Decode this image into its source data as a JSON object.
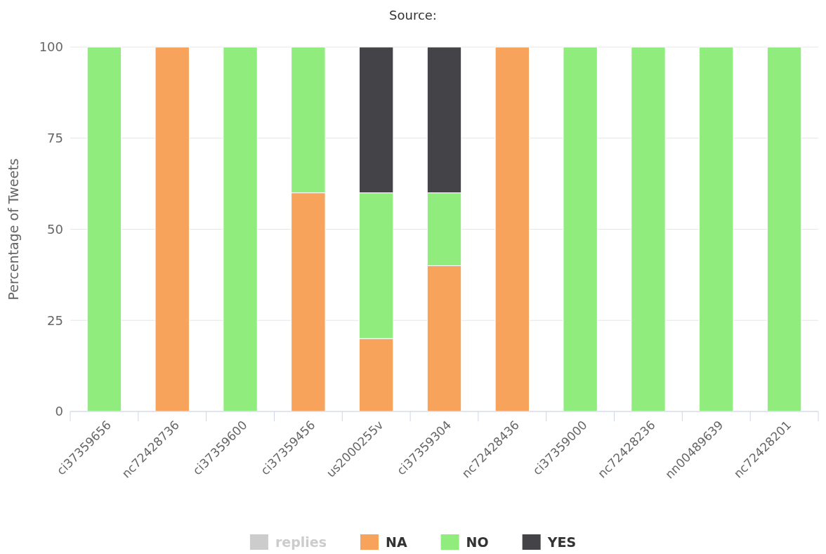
{
  "chart_data": {
    "type": "bar",
    "title": "Source:",
    "ylabel": "Percentage of Tweets",
    "stacked": true,
    "categories": [
      "ci37359656",
      "nc72428736",
      "ci37359600",
      "ci37359456",
      "us2000255v",
      "ci37359304",
      "nc72428436",
      "ci37359000",
      "nc72428236",
      "nn00489639",
      "nc72428201"
    ],
    "series": [
      {
        "name": "replies",
        "color": "#cccccc",
        "values": [
          null,
          null,
          null,
          null,
          null,
          null,
          null,
          null,
          null,
          null,
          null
        ]
      },
      {
        "name": "NA",
        "color": "#f7a35c",
        "values": [
          null,
          100,
          null,
          60,
          20,
          40,
          100,
          null,
          null,
          null,
          null
        ]
      },
      {
        "name": "NO",
        "color": "#90ed7d",
        "values": [
          100,
          null,
          100,
          40,
          40,
          20,
          null,
          100,
          100,
          100,
          100
        ]
      },
      {
        "name": "YES",
        "color": "#434348",
        "values": [
          null,
          null,
          null,
          null,
          40,
          40,
          null,
          null,
          null,
          null,
          null
        ]
      }
    ],
    "ylim": [
      0,
      100
    ],
    "yticks": [
      0,
      25,
      50,
      75,
      100
    ],
    "grid": "y",
    "legend": "bottom"
  }
}
